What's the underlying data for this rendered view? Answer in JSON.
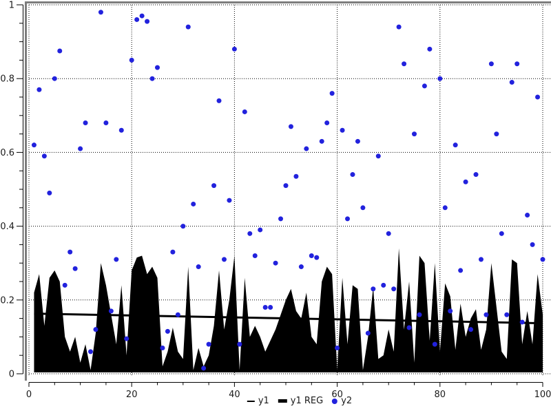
{
  "colors": {
    "background": "#ffffff",
    "frame": "#7d7d7d",
    "grid": "#000000",
    "text": "#1a1a1a",
    "area": "#000000",
    "regression": "#000000",
    "scatter": "#2222dd"
  },
  "legend": {
    "position": "bottom",
    "items": [
      {
        "label": "y1",
        "swatch": "thin-line"
      },
      {
        "label": "y1 REG",
        "swatch": "thick-line"
      },
      {
        "label": "y2",
        "swatch": "dot"
      }
    ]
  },
  "chart_data": {
    "type": "area+scatter",
    "title": "",
    "xlabel": "",
    "ylabel": "",
    "xlim": [
      0,
      100
    ],
    "ylim": [
      0,
      1
    ],
    "grid": "dotted",
    "legend_position": "bottom",
    "x_domain": {
      "first": 1,
      "last": 100,
      "step": 1
    },
    "axes": {
      "x": {
        "min": 0,
        "max": 100,
        "major_ticks": [
          0,
          20,
          40,
          60,
          80,
          100
        ],
        "labels": [
          "0",
          "20",
          "40",
          "60",
          "80",
          "100"
        ],
        "minor_step": 5
      },
      "y": {
        "min": 0,
        "max": 1,
        "major_ticks": [
          0,
          0.2,
          0.4,
          0.6,
          0.8,
          1
        ],
        "labels": [
          "0",
          "0.2",
          "0.4",
          "0.6",
          "0.8",
          "1"
        ],
        "minor_step": 0.05
      }
    },
    "series": [
      {
        "name": "y1",
        "type": "area",
        "color": "#000000",
        "values": [
          0.22,
          0.27,
          0.13,
          0.26,
          0.28,
          0.25,
          0.1,
          0.06,
          0.1,
          0.03,
          0.08,
          0.01,
          0.11,
          0.3,
          0.24,
          0.16,
          0.08,
          0.24,
          0.05,
          0.28,
          0.315,
          0.32,
          0.27,
          0.29,
          0.26,
          0.02,
          0.06,
          0.125,
          0.06,
          0.04,
          0.29,
          0.01,
          0.07,
          0.02,
          0.05,
          0.13,
          0.28,
          0.12,
          0.2,
          0.32,
          0.01,
          0.26,
          0.1,
          0.13,
          0.1,
          0.06,
          0.09,
          0.12,
          0.16,
          0.2,
          0.23,
          0.17,
          0.15,
          0.22,
          0.1,
          0.08,
          0.25,
          0.29,
          0.27,
          0.01,
          0.26,
          0.08,
          0.24,
          0.23,
          0.01,
          0.1,
          0.235,
          0.04,
          0.05,
          0.12,
          0.06,
          0.34,
          0.12,
          0.25,
          0.03,
          0.32,
          0.3,
          0.09,
          0.3,
          0.06,
          0.245,
          0.21,
          0.065,
          0.19,
          0.1,
          0.15,
          0.175,
          0.065,
          0.12,
          0.3,
          0.18,
          0.06,
          0.04,
          0.31,
          0.3,
          0.08,
          0.17,
          0.08,
          0.27,
          0.16
        ]
      },
      {
        "name": "y1 REG",
        "type": "line",
        "color": "#000000",
        "stroke_width": 3,
        "points": {
          "x": [
            1,
            100
          ],
          "y": [
            0.163,
            0.137
          ]
        }
      },
      {
        "name": "y2",
        "type": "scatter",
        "color": "#2222dd",
        "marker": "circle",
        "values": [
          0.62,
          0.77,
          0.59,
          0.49,
          0.8,
          0.875,
          0.24,
          0.33,
          0.285,
          0.61,
          0.68,
          0.06,
          0.12,
          0.98,
          0.68,
          0.17,
          0.31,
          0.66,
          0.095,
          0.85,
          0.96,
          0.97,
          0.955,
          0.8,
          0.83,
          0.07,
          0.115,
          0.33,
          0.16,
          0.4,
          0.94,
          0.46,
          0.29,
          0.015,
          0.08,
          0.51,
          0.74,
          0.31,
          0.47,
          0.88,
          0.08,
          0.71,
          0.38,
          0.32,
          0.39,
          0.18,
          0.18,
          0.3,
          0.42,
          0.51,
          0.67,
          0.535,
          0.29,
          0.61,
          0.32,
          0.315,
          0.63,
          0.68,
          0.76,
          0.07,
          0.66,
          0.42,
          0.54,
          0.63,
          0.45,
          0.11,
          0.23,
          0.59,
          0.24,
          0.38,
          0.23,
          0.94,
          0.84,
          0.125,
          0.65,
          0.16,
          0.78,
          0.88,
          0.08,
          0.8,
          0.45,
          0.17,
          0.62,
          0.28,
          0.52,
          0.12,
          0.54,
          0.31,
          0.16,
          0.84,
          0.65,
          0.38,
          0.16,
          0.79,
          0.84,
          0.14,
          0.43,
          0.35,
          0.75,
          0.31
        ]
      }
    ]
  }
}
